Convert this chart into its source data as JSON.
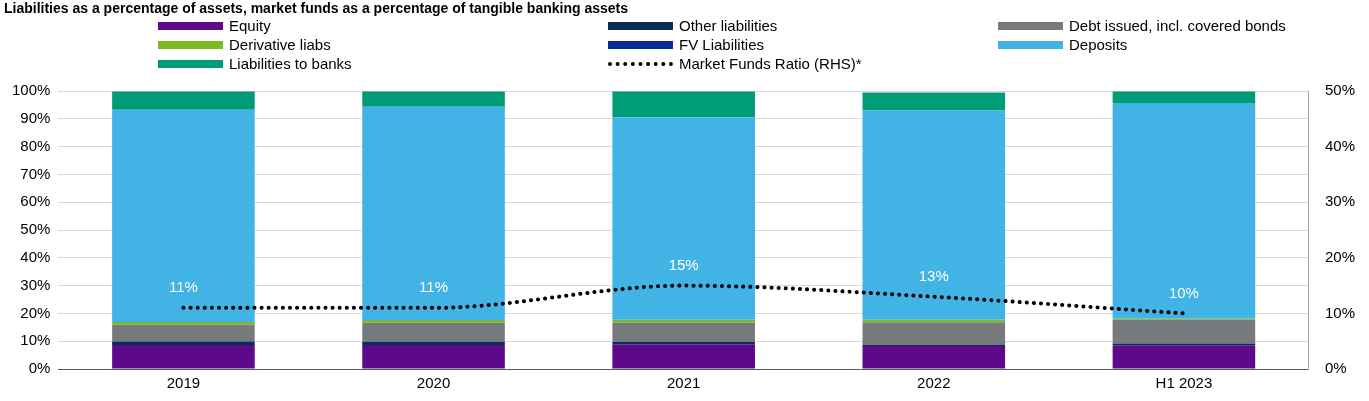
{
  "chart_data": {
    "type": "bar",
    "title": "Liabilities as a percentage of assets, market funds as a percentage of tangible banking assets",
    "categories": [
      "2019",
      "2020",
      "2021",
      "2022",
      "H1 2023"
    ],
    "stacked": true,
    "legend": "top",
    "grid": "y",
    "ylim": [
      0,
      100
    ],
    "yticks": [
      {
        "value": 0,
        "label": "0%"
      },
      {
        "value": 10,
        "label": "10%"
      },
      {
        "value": 20,
        "label": "20%"
      },
      {
        "value": 30,
        "label": "30%"
      },
      {
        "value": 40,
        "label": "40%"
      },
      {
        "value": 50,
        "label": "50%"
      },
      {
        "value": 60,
        "label": "60%"
      },
      {
        "value": 70,
        "label": "70%"
      },
      {
        "value": 80,
        "label": "80%"
      },
      {
        "value": 90,
        "label": "90%"
      },
      {
        "value": 100,
        "label": "100%"
      }
    ],
    "y2lim": [
      0,
      50
    ],
    "y2ticks": [
      {
        "value": 0,
        "label": "0%"
      },
      {
        "value": 10,
        "label": "10%"
      },
      {
        "value": 20,
        "label": "20%"
      },
      {
        "value": 30,
        "label": "30%"
      },
      {
        "value": 40,
        "label": "40%"
      },
      {
        "value": 50,
        "label": "50%"
      }
    ],
    "series": [
      {
        "name": "Equity",
        "color": "#5c0a8a",
        "values": [
          8.6,
          8.6,
          8.9,
          8.3,
          8.5
        ]
      },
      {
        "name": "Other liabilities",
        "color": "#0a2d5a",
        "values": [
          1.3,
          1.2,
          0.8,
          0.3,
          0.7
        ]
      },
      {
        "name": "Debt issued, incl. covered bonds",
        "color": "#767a7d",
        "values": [
          6.0,
          6.8,
          7.0,
          8.2,
          8.5
        ]
      },
      {
        "name": "Derivative liabs",
        "color": "#7dbb26",
        "values": [
          1.0,
          1.0,
          1.0,
          0.9,
          0.4
        ]
      },
      {
        "name": "FV Liabilities",
        "color": "#0a2a9c",
        "values": [
          null,
          null,
          null,
          null,
          null
        ]
      },
      {
        "name": "Deposits",
        "color": "#41b4e5",
        "values": [
          76.4,
          76.7,
          72.9,
          75.3,
          77.6
        ]
      },
      {
        "name": "Liabilities to banks",
        "color": "#009b77",
        "values": [
          6.5,
          5.5,
          9.2,
          6.5,
          4.1
        ]
      },
      {
        "name": "Market Funds Ratio (RHS)*",
        "type": "line",
        "axis": "y2",
        "color": "#000000",
        "line_style": "dotted",
        "marker": "none",
        "values": [
          11,
          11,
          15,
          13,
          10
        ],
        "value_labels": [
          "11%",
          "11%",
          "15%",
          "13%",
          "10%"
        ]
      }
    ]
  }
}
